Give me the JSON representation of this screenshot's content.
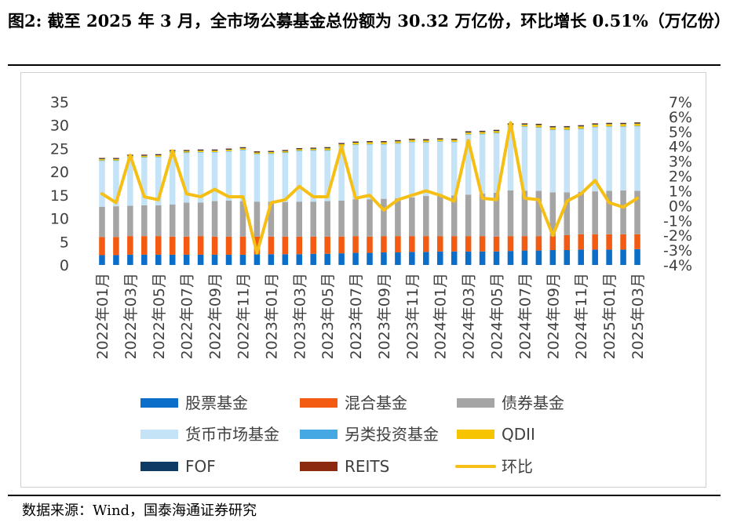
{
  "figure": {
    "title": "图2:  截至 2025 年 3 月，全市场公募基金总份额为 30.32 万亿份，环比增长 0.51%（万亿份）",
    "source": "数据来源：Wind，国泰海通证券研究"
  },
  "chart_data": {
    "type": "bar",
    "stacked": true,
    "categories": [
      "2022年01月",
      "2022年02月",
      "2022年03月",
      "2022年04月",
      "2022年05月",
      "2022年06月",
      "2022年07月",
      "2022年08月",
      "2022年09月",
      "2022年10月",
      "2022年11月",
      "2022年12月",
      "2023年01月",
      "2023年02月",
      "2023年03月",
      "2023年04月",
      "2023年05月",
      "2023年06月",
      "2023年07月",
      "2023年08月",
      "2023年09月",
      "2023年10月",
      "2023年11月",
      "2023年12月",
      "2024年01月",
      "2024年02月",
      "2024年03月",
      "2024年04月",
      "2024年05月",
      "2024年06月",
      "2024年07月",
      "2024年08月",
      "2024年09月",
      "2024年10月",
      "2024年11月",
      "2024年12月",
      "2025年01月",
      "2025年02月",
      "2025年03月"
    ],
    "x_tick_labels": [
      "2022年01月",
      "2022年03月",
      "2022年05月",
      "2022年07月",
      "2022年09月",
      "2022年11月",
      "2023年01月",
      "2023年03月",
      "2023年05月",
      "2023年07月",
      "2023年09月",
      "2023年11月",
      "2024年01月",
      "2024年03月",
      "2024年05月",
      "2024年07月",
      "2024年09月",
      "2024年11月",
      "2025年01月",
      "2025年03月"
    ],
    "y_left": {
      "range": [
        0,
        35
      ],
      "ticks": [
        "0",
        "5",
        "10",
        "15",
        "20",
        "25",
        "30",
        "35"
      ]
    },
    "y_right": {
      "range": [
        -4,
        7
      ],
      "ticks": [
        "7%",
        "6%",
        "5%",
        "4%",
        "3%",
        "2%",
        "1%",
        "0%",
        "-1%",
        "-2%",
        "-3%",
        "-4%"
      ]
    },
    "legend_position": "bottom",
    "grid": false,
    "series": [
      {
        "name": "股票基金",
        "color": "#0b6fc9",
        "axis": "left",
        "values": [
          2.1,
          2.1,
          2.2,
          2.2,
          2.2,
          2.2,
          2.2,
          2.2,
          2.2,
          2.2,
          2.2,
          2.3,
          2.3,
          2.3,
          2.3,
          2.4,
          2.4,
          2.5,
          2.6,
          2.6,
          2.7,
          2.7,
          2.8,
          2.8,
          2.9,
          2.9,
          2.9,
          2.9,
          2.9,
          3.0,
          3.1,
          3.1,
          3.2,
          3.2,
          3.3,
          3.3,
          3.3,
          3.3,
          3.4
        ]
      },
      {
        "name": "混合基金",
        "color": "#f25b11",
        "axis": "left",
        "values": [
          3.9,
          3.9,
          4.0,
          4.0,
          4.0,
          3.9,
          3.9,
          4.0,
          3.9,
          3.9,
          3.9,
          3.8,
          3.8,
          3.8,
          3.8,
          3.7,
          3.7,
          3.6,
          3.6,
          3.5,
          3.5,
          3.5,
          3.4,
          3.4,
          3.3,
          3.3,
          3.3,
          3.3,
          3.2,
          3.2,
          3.1,
          3.1,
          3.0,
          3.2,
          3.3,
          3.3,
          3.3,
          3.3,
          3.2
        ]
      },
      {
        "name": "债券基金",
        "color": "#a5a5a5",
        "axis": "left",
        "values": [
          6.5,
          6.6,
          6.5,
          6.6,
          6.6,
          6.9,
          7.3,
          7.2,
          7.6,
          7.7,
          7.6,
          7.5,
          7.5,
          7.4,
          7.5,
          7.5,
          7.6,
          7.7,
          7.9,
          8.0,
          8.0,
          8.1,
          8.3,
          8.6,
          8.7,
          8.7,
          8.9,
          9.1,
          9.4,
          9.8,
          9.7,
          9.7,
          9.4,
          9.2,
          9.1,
          9.2,
          9.3,
          9.4,
          9.3
        ]
      },
      {
        "name": "货币市场基金",
        "color": "#c5e3f7",
        "axis": "left",
        "values": [
          9.9,
          9.8,
          10.4,
          10.3,
          10.4,
          11.1,
          10.7,
          10.8,
          10.5,
          10.6,
          11.0,
          10.2,
          10.3,
          10.6,
          10.9,
          11.0,
          10.9,
          11.7,
          11.7,
          11.8,
          11.7,
          11.8,
          11.9,
          11.5,
          11.6,
          11.5,
          12.9,
          12.8,
          12.8,
          13.7,
          13.8,
          13.6,
          13.4,
          13.4,
          13.5,
          13.8,
          13.8,
          13.7,
          13.9
        ]
      },
      {
        "name": "另类投资基金",
        "color": "#45a8e3",
        "axis": "left",
        "values": [
          0.05,
          0.05,
          0.05,
          0.05,
          0.05,
          0.05,
          0.05,
          0.05,
          0.05,
          0.05,
          0.05,
          0.05,
          0.05,
          0.05,
          0.05,
          0.05,
          0.05,
          0.05,
          0.05,
          0.05,
          0.05,
          0.05,
          0.05,
          0.05,
          0.05,
          0.05,
          0.05,
          0.05,
          0.05,
          0.05,
          0.05,
          0.05,
          0.05,
          0.05,
          0.05,
          0.05,
          0.05,
          0.05,
          0.05
        ]
      },
      {
        "name": "QDII",
        "color": "#f6c400",
        "axis": "left",
        "values": [
          0.3,
          0.3,
          0.3,
          0.3,
          0.3,
          0.3,
          0.3,
          0.3,
          0.3,
          0.3,
          0.3,
          0.3,
          0.3,
          0.3,
          0.3,
          0.3,
          0.4,
          0.4,
          0.4,
          0.4,
          0.4,
          0.4,
          0.4,
          0.4,
          0.4,
          0.4,
          0.4,
          0.4,
          0.4,
          0.4,
          0.4,
          0.5,
          0.5,
          0.5,
          0.5,
          0.5,
          0.5,
          0.5,
          0.5
        ]
      },
      {
        "name": "FOF",
        "color": "#0d3b66",
        "axis": "left",
        "values": [
          0.2,
          0.2,
          0.2,
          0.2,
          0.2,
          0.2,
          0.2,
          0.2,
          0.2,
          0.2,
          0.2,
          0.2,
          0.2,
          0.2,
          0.2,
          0.2,
          0.2,
          0.2,
          0.2,
          0.2,
          0.2,
          0.2,
          0.2,
          0.2,
          0.2,
          0.2,
          0.2,
          0.2,
          0.2,
          0.2,
          0.2,
          0.2,
          0.2,
          0.2,
          0.2,
          0.2,
          0.2,
          0.2,
          0.2
        ]
      },
      {
        "name": "REITS",
        "color": "#8b2a0e",
        "axis": "left",
        "values": [
          0.02,
          0.02,
          0.02,
          0.02,
          0.03,
          0.03,
          0.03,
          0.03,
          0.03,
          0.03,
          0.03,
          0.03,
          0.03,
          0.03,
          0.03,
          0.03,
          0.04,
          0.04,
          0.04,
          0.04,
          0.04,
          0.04,
          0.04,
          0.04,
          0.04,
          0.04,
          0.05,
          0.05,
          0.05,
          0.05,
          0.05,
          0.05,
          0.05,
          0.05,
          0.05,
          0.05,
          0.05,
          0.05,
          0.05
        ]
      },
      {
        "name": "环比",
        "color": "#f5bf16",
        "axis": "right",
        "type": "line",
        "values": [
          0.8,
          0.2,
          3.4,
          0.6,
          0.4,
          3.7,
          0.8,
          0.6,
          1.1,
          0.6,
          0.6,
          -3.2,
          0.2,
          0.4,
          1.3,
          0.6,
          0.6,
          4.0,
          0.5,
          0.7,
          -0.3,
          0.4,
          0.7,
          1.0,
          0.7,
          0.3,
          4.4,
          0.5,
          0.4,
          5.6,
          0.5,
          0.4,
          -2.0,
          0.3,
          0.8,
          1.7,
          0.2,
          -0.1,
          0.5
        ]
      }
    ],
    "legend_rows": [
      [
        "股票基金",
        "混合基金",
        "债券基金"
      ],
      [
        "货币市场基金",
        "另类投资基金",
        "QDII"
      ],
      [
        "FOF",
        "REITS",
        "环比"
      ]
    ]
  }
}
